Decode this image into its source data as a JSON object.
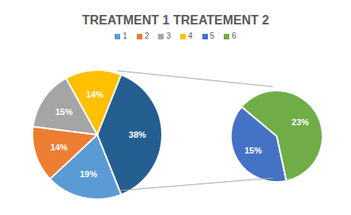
{
  "chart_data": {
    "type": "pie",
    "title": "TREATMENT 1 TREATEMENT 2",
    "legend": "top",
    "data_labels": true,
    "categories": [
      "1",
      "2",
      "3",
      "4",
      "5",
      "6"
    ],
    "values": [
      19,
      14,
      15,
      14,
      15,
      23
    ],
    "value_labels": [
      "19%",
      "14%",
      "15%",
      "14%",
      "15%",
      "23%"
    ],
    "colors": [
      "#5B9BD5",
      "#ED7D31",
      "#A5A5A5",
      "#FFC000",
      "#4472C4",
      "#70AD47"
    ],
    "secondary_categories": [
      "5",
      "6"
    ],
    "other_value": 38,
    "other_value_label": "38%",
    "other_color": "#255E91"
  }
}
